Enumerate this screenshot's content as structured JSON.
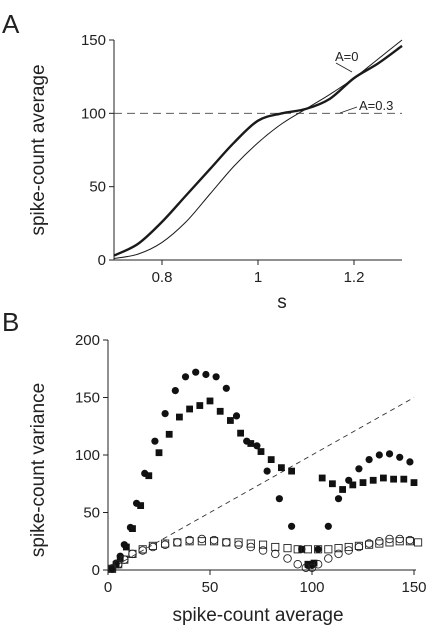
{
  "chart_data": [
    {
      "panel": "A",
      "type": "line",
      "xlabel": "s",
      "ylabel": "spike-count average",
      "xlim": [
        0.7,
        1.3
      ],
      "ylim": [
        0,
        150
      ],
      "xticks": [
        "0.8",
        "1",
        "1.2"
      ],
      "yticks": [
        "0",
        "50",
        "100",
        "150"
      ],
      "reference_line": {
        "y": 100,
        "style": "dashed"
      },
      "series": [
        {
          "name": "A=0",
          "line_width": "thin",
          "x": [
            0.7,
            0.75,
            0.8,
            0.85,
            0.9,
            0.95,
            1.0,
            1.05,
            1.1,
            1.15,
            1.2,
            1.25,
            1.3
          ],
          "y": [
            1,
            4,
            12,
            26,
            45,
            64,
            80,
            93,
            103,
            113,
            124,
            137,
            150
          ]
        },
        {
          "name": "A=0.3",
          "line_width": "thick",
          "x": [
            0.7,
            0.75,
            0.8,
            0.85,
            0.9,
            0.95,
            1.0,
            1.05,
            1.1,
            1.15,
            1.2,
            1.25,
            1.3
          ],
          "y": [
            3,
            11,
            26,
            44,
            62,
            80,
            95,
            100,
            103,
            110,
            124,
            134,
            146
          ]
        }
      ]
    },
    {
      "panel": "B",
      "type": "scatter",
      "xlabel": "spike-count average",
      "ylabel": "spike-count variance",
      "xlim": [
        0,
        150
      ],
      "ylim": [
        0,
        200
      ],
      "xticks": [
        "0",
        "50",
        "100",
        "150"
      ],
      "yticks": [
        "0",
        "50",
        "100",
        "150",
        "200"
      ],
      "reference_line": {
        "x": [
          0,
          150
        ],
        "y": [
          0,
          150
        ],
        "style": "dashed"
      },
      "series": [
        {
          "marker": "filled-circle",
          "x": [
            2,
            4,
            6,
            8,
            11,
            14,
            18,
            23,
            28,
            33,
            38,
            43,
            48,
            53,
            58,
            63,
            68,
            73,
            78,
            84,
            90,
            95,
            98,
            100,
            103,
            108,
            113,
            118,
            123,
            128,
            133,
            138,
            143,
            148
          ],
          "y": [
            2,
            6,
            12,
            22,
            37,
            58,
            84,
            112,
            136,
            156,
            168,
            172,
            170,
            168,
            158,
            134,
            112,
            108,
            86,
            62,
            38,
            18,
            4,
            4,
            18,
            38,
            62,
            78,
            88,
            96,
            100,
            101,
            98,
            94
          ]
        },
        {
          "marker": "filled-square",
          "x": [
            2,
            4,
            6,
            9,
            12,
            16,
            20,
            25,
            30,
            35,
            40,
            45,
            50,
            55,
            60,
            65,
            70,
            75,
            80,
            85,
            90,
            95,
            98,
            101,
            105,
            110,
            115,
            120,
            125,
            130,
            135,
            140,
            145,
            150
          ],
          "y": [
            1,
            5,
            10,
            20,
            36,
            56,
            82,
            102,
            118,
            133,
            140,
            143,
            147,
            138,
            130,
            119,
            110,
            103,
            96,
            89,
            86,
            18,
            5,
            6,
            80,
            75,
            70,
            74,
            76,
            78,
            80,
            79,
            79,
            76
          ]
        },
        {
          "marker": "open-square",
          "x": [
            2,
            5,
            8,
            12,
            17,
            22,
            28,
            34,
            40,
            46,
            52,
            58,
            64,
            70,
            76,
            82,
            88,
            93,
            98,
            103,
            108,
            113,
            118,
            123,
            128,
            133,
            138,
            143,
            148,
            152
          ],
          "y": [
            1,
            5,
            9,
            14,
            18,
            21,
            23,
            24,
            25,
            25,
            25,
            24,
            24,
            23,
            22,
            20,
            19,
            18,
            18,
            18,
            18,
            19,
            20,
            21,
            22,
            23,
            24,
            25,
            25,
            24
          ]
        },
        {
          "marker": "open-circle",
          "x": [
            2,
            5,
            8,
            12,
            17,
            22,
            28,
            34,
            40,
            46,
            52,
            58,
            64,
            70,
            76,
            82,
            88,
            93,
            97,
            100,
            103,
            108,
            113,
            118,
            123,
            128,
            133,
            138,
            143,
            148
          ],
          "y": [
            1,
            5,
            9,
            14,
            17,
            20,
            22,
            24,
            26,
            27,
            26,
            24,
            22,
            20,
            17,
            14,
            10,
            5,
            2,
            2,
            5,
            10,
            14,
            17,
            20,
            23,
            25,
            27,
            27,
            26
          ]
        }
      ],
      "annotations": []
    }
  ],
  "labels": {
    "panel_a": "A",
    "panel_b": "B",
    "curve_a0": "A=0",
    "curve_a03": "A=0.3"
  }
}
